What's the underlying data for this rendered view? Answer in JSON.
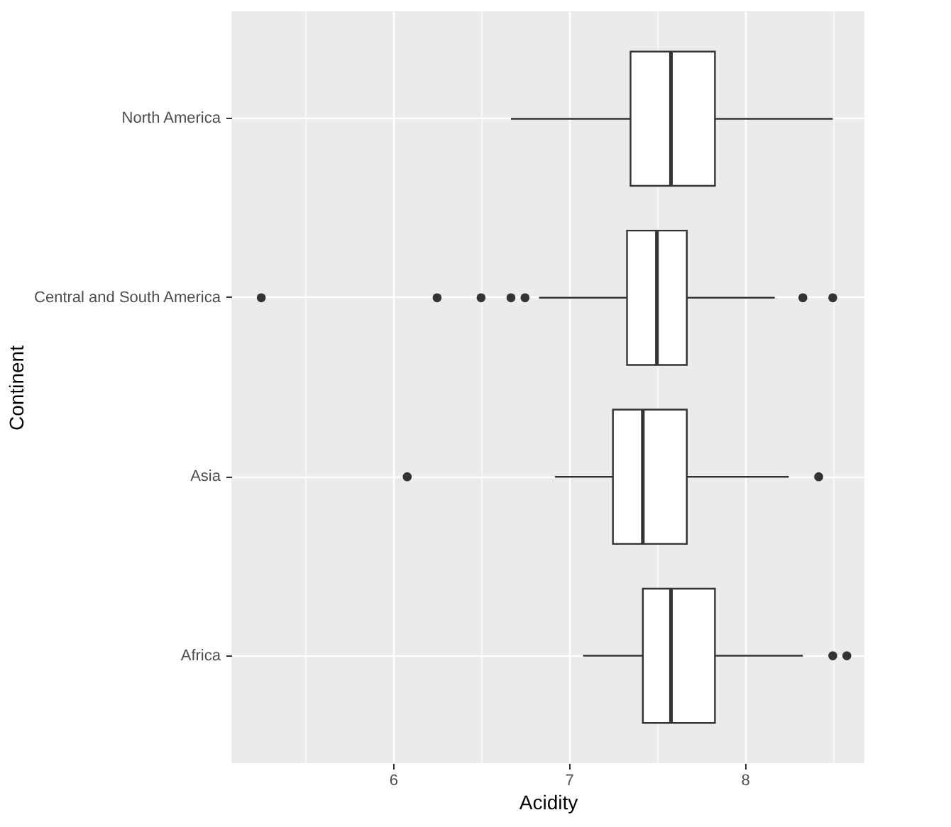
{
  "chart_data": {
    "type": "box",
    "orientation": "horizontal",
    "xlabel": "Acidity",
    "ylabel": "Continent",
    "categories": [
      "North America",
      "Central and South America",
      "Asia",
      "Africa"
    ],
    "boxes": [
      {
        "low": 6.67,
        "q1": 7.35,
        "median": 7.58,
        "q3": 7.83,
        "high": 8.5
      },
      {
        "low": 6.83,
        "q1": 7.33,
        "median": 7.5,
        "q3": 7.67,
        "high": 8.17,
        "outliers": [
          5.25,
          6.25,
          6.5,
          6.67,
          6.75,
          8.33,
          8.5
        ]
      },
      {
        "low": 6.92,
        "q1": 7.25,
        "median": 7.42,
        "q3": 7.67,
        "high": 8.25,
        "outliers": [
          6.08,
          8.42
        ]
      },
      {
        "low": 7.08,
        "q1": 7.42,
        "median": 7.58,
        "q3": 7.83,
        "high": 8.33,
        "outliers": [
          8.5,
          8.58
        ]
      }
    ],
    "xlim": [
      5.08,
      8.68
    ],
    "xticks": [
      {
        "value": 5.5,
        "label": null
      },
      6,
      {
        "value": 6.5,
        "label": null
      },
      7,
      {
        "value": 7.5,
        "label": null
      },
      8,
      {
        "value": 8.5,
        "label": null
      }
    ],
    "grid": true
  }
}
